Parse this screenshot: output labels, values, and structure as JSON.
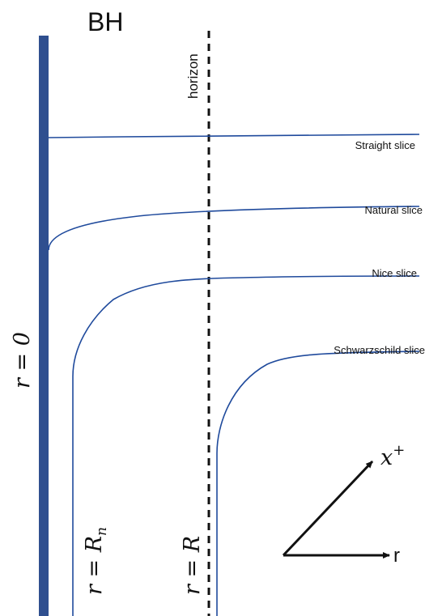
{
  "labels": {
    "bh": "BH",
    "horizon": "horizon",
    "r_zero": "r = 0",
    "r_rn": "r = R",
    "r_rn_sub": "n",
    "r_r": "r = R",
    "axis_x": "x",
    "axis_x_sup": "+",
    "axis_r": "r"
  },
  "slices": [
    {
      "id": "straight",
      "label": "Straight slice"
    },
    {
      "id": "natural",
      "label": "Natural slice"
    },
    {
      "id": "nice",
      "label": "Nice slice"
    },
    {
      "id": "schwarzschild",
      "label": "Schwarzschild slice"
    }
  ],
  "colors": {
    "singularity": "#2f4f8f",
    "slice": "#1f4a9c",
    "horizon": "#111111",
    "arrow": "#111111",
    "text": "#111111"
  }
}
